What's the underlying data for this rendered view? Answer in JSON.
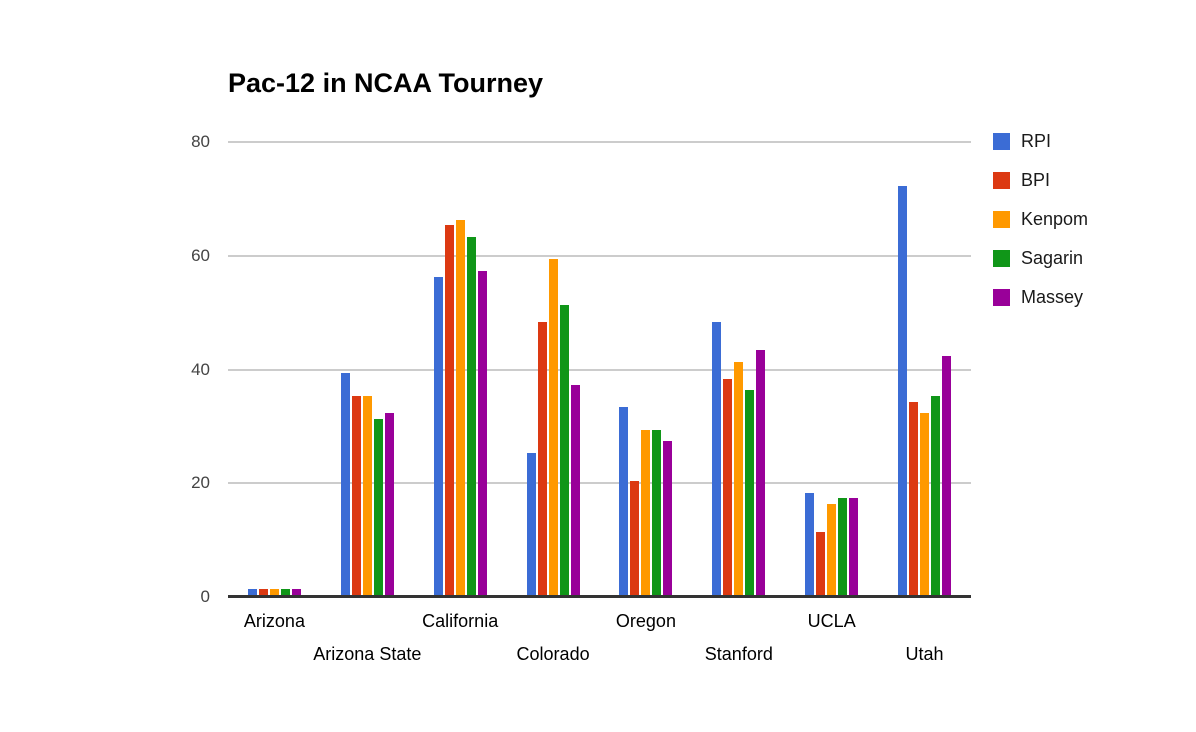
{
  "chart_data": {
    "type": "bar",
    "title": "Pac-12 in NCAA Tourney",
    "categories": [
      "Arizona",
      "Arizona State",
      "California",
      "Colorado",
      "Oregon",
      "Stanford",
      "UCLA",
      "Utah"
    ],
    "series": [
      {
        "name": "RPI",
        "color": "#3b6cd5",
        "values": [
          1,
          39,
          56,
          25,
          33,
          48,
          18,
          72
        ]
      },
      {
        "name": "BPI",
        "color": "#dc3912",
        "values": [
          1,
          35,
          65,
          48,
          20,
          38,
          11,
          34
        ]
      },
      {
        "name": "Kenpom",
        "color": "#ff9900",
        "values": [
          1,
          35,
          66,
          59,
          29,
          41,
          16,
          32
        ]
      },
      {
        "name": "Sagarin",
        "color": "#109618",
        "values": [
          1,
          31,
          63,
          51,
          29,
          36,
          17,
          35
        ]
      },
      {
        "name": "Massey",
        "color": "#990099",
        "values": [
          1,
          32,
          57,
          37,
          27,
          43,
          17,
          42
        ]
      }
    ],
    "xlabel": "",
    "ylabel": "",
    "ylim": [
      0,
      80
    ],
    "yticks": [
      0,
      20,
      40,
      60,
      80
    ],
    "grid": true,
    "legend_position": "right",
    "colors": {
      "gridline": "#cccccc",
      "axis_line": "#333333",
      "tick_text": "#444444",
      "category_text": "#000000",
      "legend_text": "#1a1a1a",
      "background": "#ffffff",
      "title_text": "#000000"
    }
  }
}
